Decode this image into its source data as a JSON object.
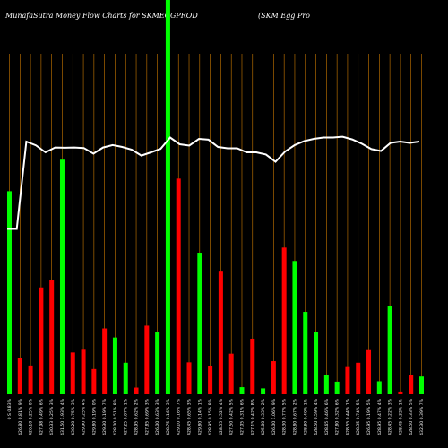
{
  "title_left": "MunafaSutra  Money Flow  Charts for SKMEGGPROD",
  "title_right": "(SKM Egg Pro",
  "chart_data": {
    "type": "bar",
    "colors": {
      "up": "#00ff00",
      "down": "#ff0000",
      "grid": "#cc7a00",
      "line": "#ffffff",
      "background": "#000000"
    },
    "bars": [
      {
        "dir": "up",
        "value": 0.515,
        "label": "0 S 0.83%",
        "price": ""
      },
      {
        "dir": "down",
        "value": 0.093,
        "label": "426.80 0.81% 9%",
        "price": ""
      },
      {
        "dir": "down",
        "value": 0.073,
        "label": "426.10 0.25% 0%",
        "price": ""
      },
      {
        "dir": "down",
        "value": 0.271,
        "label": "427.98 0.49% 6%",
        "price": ""
      },
      {
        "dir": "down",
        "value": 0.289,
        "label": "430.33 0.25% 3%",
        "price": ""
      },
      {
        "dir": "up",
        "value": 0.595,
        "label": "431.50 1.93% 4%",
        "price": ""
      },
      {
        "dir": "down",
        "value": 0.106,
        "label": "430.20 0.75% 3%",
        "price": ""
      },
      {
        "dir": "down",
        "value": 0.113,
        "label": "429.90 0.25% 4%",
        "price": ""
      },
      {
        "dir": "down",
        "value": 0.064,
        "label": "429.80 0.19% 0%",
        "price": ""
      },
      {
        "dir": "down",
        "value": 0.167,
        "label": "429.30 0.19% 7%",
        "price": ""
      },
      {
        "dir": "up",
        "value": 0.144,
        "label": "428.00 0.51% 8%",
        "price": ""
      },
      {
        "dir": "up",
        "value": 0.08,
        "label": "427.25 0.07% 1%",
        "price": ""
      },
      {
        "dir": "down",
        "value": 0.017,
        "label": "428.95 0.62% 2%",
        "price": ""
      },
      {
        "dir": "down",
        "value": 0.174,
        "label": "427.85 0.69% 3%",
        "price": ""
      },
      {
        "dir": "up",
        "value": 0.158,
        "label": "426.00 0.63% 3%",
        "price": ""
      },
      {
        "dir": "up",
        "value": 1.0,
        "label": "428.75 0.16% 3%",
        "price": ""
      },
      {
        "dir": "down",
        "value": 0.547,
        "label": "429.10 0.16% 7%",
        "price": ""
      },
      {
        "dir": "down",
        "value": 0.081,
        "label": "428.45 0.65% 3%",
        "price": ""
      },
      {
        "dir": "up",
        "value": 0.359,
        "label": "429.80 0.14% 1%",
        "price": ""
      },
      {
        "dir": "down",
        "value": 0.072,
        "label": "428.95 0.15% 8%",
        "price": ""
      },
      {
        "dir": "down",
        "value": 0.311,
        "label": "428.55 0.52% 4%",
        "price": ""
      },
      {
        "dir": "down",
        "value": 0.103,
        "label": "427.50 0.42% 5%",
        "price": ""
      },
      {
        "dir": "up",
        "value": 0.018,
        "label": "427.05 0.31% 6%",
        "price": ""
      },
      {
        "dir": "down",
        "value": 0.141,
        "label": "427.15 0.42% 8%",
        "price": ""
      },
      {
        "dir": "up",
        "value": 0.015,
        "label": "425.80 0.33% 2%",
        "price": ""
      },
      {
        "dir": "down",
        "value": 0.084,
        "label": "426.00 1.06% 9%",
        "price": ""
      },
      {
        "dir": "down",
        "value": 0.372,
        "label": "428.30 0.77% 5%",
        "price": ""
      },
      {
        "dir": "up",
        "value": 0.338,
        "label": "428.80 0.67% 2%",
        "price": ""
      },
      {
        "dir": "up",
        "value": 0.209,
        "label": "428.80 0.40% 1%",
        "price": ""
      },
      {
        "dir": "up",
        "value": 0.157,
        "label": "428.50 0.59% 4%",
        "price": ""
      },
      {
        "dir": "up",
        "value": 0.048,
        "label": "428.65 0.46% 6%",
        "price": ""
      },
      {
        "dir": "up",
        "value": 0.032,
        "label": "427.80 0.32% 6%",
        "price": ""
      },
      {
        "dir": "down",
        "value": 0.069,
        "label": "428.55 0.44% 1%",
        "price": ""
      },
      {
        "dir": "down",
        "value": 0.08,
        "label": "428.35 0.74% 5%",
        "price": ""
      },
      {
        "dir": "down",
        "value": 0.112,
        "label": "426.95 0.19% 5%",
        "price": ""
      },
      {
        "dir": "up",
        "value": 0.033,
        "label": "428.95 0.47% 4%",
        "price": ""
      },
      {
        "dir": "up",
        "value": 0.225,
        "label": "428.45 0.22% 3%",
        "price": ""
      },
      {
        "dir": "down",
        "value": 0.007,
        "label": "428.45 0.32% 1%",
        "price": ""
      },
      {
        "dir": "down",
        "value": 0.05,
        "label": "428.50 0.33% 5%",
        "price": ""
      },
      {
        "dir": "up",
        "value": 0.045,
        "label": "432.30 0.39% 7%",
        "price": ""
      }
    ],
    "line": [
      0.615,
      0.615,
      0.94,
      0.926,
      0.9,
      0.918,
      0.917,
      0.918,
      0.916,
      0.895,
      0.918,
      0.927,
      0.92,
      0.91,
      0.888,
      0.9,
      0.913,
      0.955,
      0.93,
      0.925,
      0.95,
      0.947,
      0.92,
      0.915,
      0.915,
      0.9,
      0.9,
      0.892,
      0.865,
      0.903,
      0.927,
      0.942,
      0.95,
      0.955,
      0.955,
      0.958,
      0.948,
      0.932,
      0.912,
      0.905,
      0.935,
      0.94,
      0.935,
      0.94
    ]
  }
}
